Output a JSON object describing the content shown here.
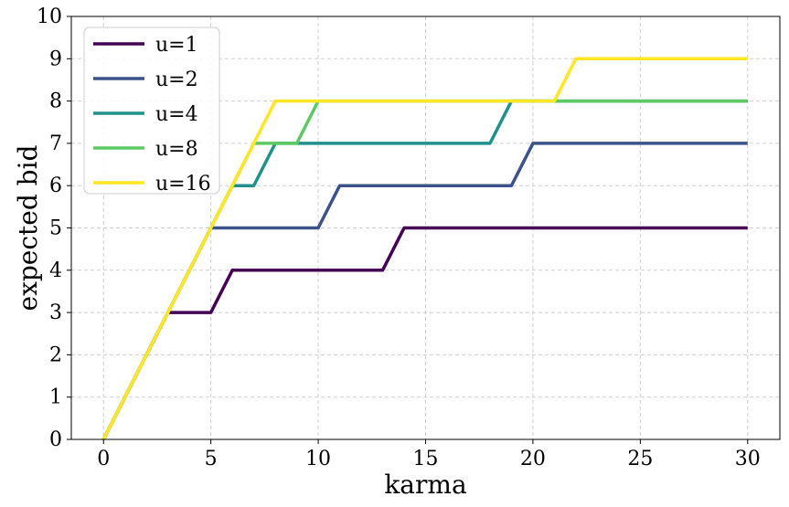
{
  "chart_data": {
    "type": "line",
    "title": "",
    "xlabel": "karma",
    "ylabel": "expected bid",
    "xlim": [
      -1.5,
      31.5
    ],
    "ylim": [
      0,
      10
    ],
    "xticks": [
      0,
      5,
      10,
      15,
      20,
      25,
      30
    ],
    "yticks": [
      0,
      1,
      2,
      3,
      4,
      5,
      6,
      7,
      8,
      9,
      10
    ],
    "grid": true,
    "legend_position": "top-left",
    "x": [
      0,
      1,
      2,
      3,
      4,
      5,
      6,
      7,
      8,
      9,
      10,
      11,
      12,
      13,
      14,
      15,
      16,
      17,
      18,
      19,
      20,
      21,
      22,
      23,
      24,
      25,
      26,
      27,
      28,
      29,
      30
    ],
    "series": [
      {
        "name": "u=1",
        "color": "#440154",
        "values": [
          0,
          1,
          2,
          3,
          3,
          3,
          4,
          4,
          4,
          4,
          4,
          4,
          4,
          4,
          5,
          5,
          5,
          5,
          5,
          5,
          5,
          5,
          5,
          5,
          5,
          5,
          5,
          5,
          5,
          5,
          5
        ]
      },
      {
        "name": "u=2",
        "color": "#3b528b",
        "values": [
          0,
          1,
          2,
          3,
          4,
          5,
          5,
          5,
          5,
          5,
          5,
          6,
          6,
          6,
          6,
          6,
          6,
          6,
          6,
          6,
          7,
          7,
          7,
          7,
          7,
          7,
          7,
          7,
          7,
          7,
          7
        ]
      },
      {
        "name": "u=4",
        "color": "#21918c",
        "values": [
          0,
          1,
          2,
          3,
          4,
          5,
          6,
          6,
          7,
          7,
          7,
          7,
          7,
          7,
          7,
          7,
          7,
          7,
          7,
          8,
          8,
          8,
          8,
          8,
          8,
          8,
          8,
          8,
          8,
          8,
          8
        ]
      },
      {
        "name": "u=8",
        "color": "#5ec962",
        "values": [
          0,
          1,
          2,
          3,
          4,
          5,
          6,
          7,
          7,
          7,
          8,
          8,
          8,
          8,
          8,
          8,
          8,
          8,
          8,
          8,
          8,
          8,
          8,
          8,
          8,
          8,
          8,
          8,
          8,
          8,
          8
        ]
      },
      {
        "name": "u=16",
        "color": "#fde725",
        "values": [
          0,
          1,
          2,
          3,
          4,
          5,
          6,
          7,
          8,
          8,
          8,
          8,
          8,
          8,
          8,
          8,
          8,
          8,
          8,
          8,
          8,
          8,
          9,
          9,
          9,
          9,
          9,
          9,
          9,
          9,
          9
        ]
      }
    ]
  }
}
